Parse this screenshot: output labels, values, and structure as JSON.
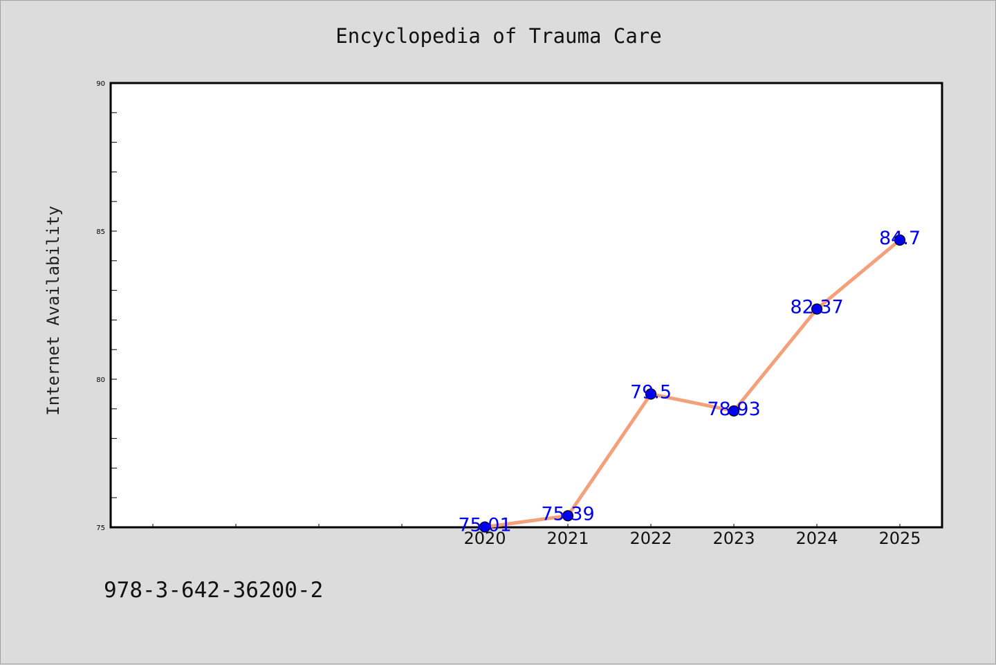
{
  "chart_data": {
    "type": "line",
    "title": "Encyclopedia of Trauma Care",
    "xlabel": "",
    "ylabel": "Internet Availability",
    "categories": [
      "2020",
      "2021",
      "2022",
      "2023",
      "2024",
      "2025"
    ],
    "series": [
      {
        "values": [
          75.01,
          75.39,
          79.5,
          78.93,
          82.37,
          84.7
        ],
        "labels": [
          "75.01",
          "75.39",
          "79.5",
          "78.93",
          "82.37",
          "84.7"
        ]
      }
    ],
    "ylim": [
      75,
      90
    ],
    "yticks": [
      "75",
      "80",
      "85",
      "90"
    ],
    "grid": false,
    "line_color": "#f4a07a",
    "marker_color": "#0000ee",
    "label_color": "#0000ee"
  },
  "footer": {
    "isbn": "978-3-642-36200-2"
  }
}
